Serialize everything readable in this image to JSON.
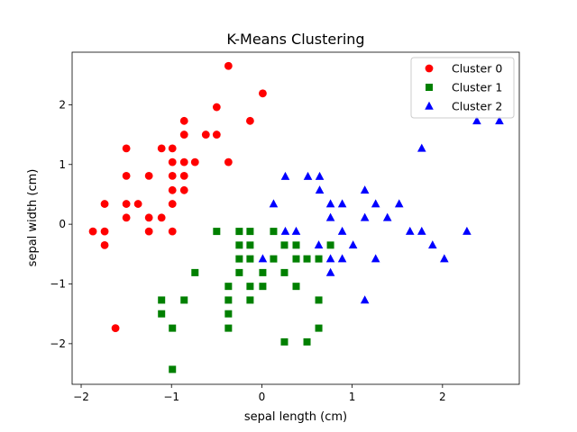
{
  "chart_data": {
    "type": "scatter",
    "title": "K-Means Clustering",
    "xlabel": "sepal length (cm)",
    "ylabel": "sepal width (cm)",
    "xlim": [
      -2.1,
      2.85
    ],
    "ylim": [
      -2.68,
      2.88
    ],
    "xticks": [
      -2,
      -1,
      0,
      1,
      2
    ],
    "yticks": [
      -2,
      -1,
      0,
      1,
      2
    ],
    "grid": false,
    "legend_position": "top-right",
    "series": [
      {
        "name": "Cluster 0",
        "marker": "circle",
        "color": "#ff0000",
        "points": [
          [
            -0.37,
            2.65
          ],
          [
            0.01,
            2.19
          ],
          [
            -0.5,
            1.96
          ],
          [
            -0.86,
            1.73
          ],
          [
            -0.13,
            1.73
          ],
          [
            -0.86,
            1.5
          ],
          [
            -0.62,
            1.5
          ],
          [
            -0.5,
            1.5
          ],
          [
            -1.5,
            1.27
          ],
          [
            -1.11,
            1.27
          ],
          [
            -0.99,
            1.27
          ],
          [
            -0.99,
            1.04
          ],
          [
            -0.86,
            1.04
          ],
          [
            -0.74,
            1.04
          ],
          [
            -0.37,
            1.04
          ],
          [
            -1.5,
            0.81
          ],
          [
            -1.25,
            0.81
          ],
          [
            -0.99,
            0.81
          ],
          [
            -0.86,
            0.81
          ],
          [
            -0.99,
            0.57
          ],
          [
            -0.86,
            0.57
          ],
          [
            -1.74,
            0.34
          ],
          [
            -1.5,
            0.34
          ],
          [
            -1.37,
            0.34
          ],
          [
            -0.99,
            0.34
          ],
          [
            -1.5,
            0.11
          ],
          [
            -1.25,
            0.11
          ],
          [
            -1.11,
            0.11
          ],
          [
            -1.87,
            -0.12
          ],
          [
            -1.74,
            -0.12
          ],
          [
            -1.25,
            -0.12
          ],
          [
            -0.99,
            -0.12
          ],
          [
            -1.74,
            -0.35
          ],
          [
            -1.62,
            -1.74
          ]
        ]
      },
      {
        "name": "Cluster 1",
        "marker": "square",
        "color": "#008000",
        "points": [
          [
            -0.5,
            -0.12
          ],
          [
            -0.25,
            -0.12
          ],
          [
            -0.13,
            -0.12
          ],
          [
            0.13,
            -0.12
          ],
          [
            -0.25,
            -0.35
          ],
          [
            -0.13,
            -0.35
          ],
          [
            0.25,
            -0.35
          ],
          [
            0.38,
            -0.35
          ],
          [
            0.76,
            -0.35
          ],
          [
            -0.25,
            -0.58
          ],
          [
            -0.13,
            -0.58
          ],
          [
            0.13,
            -0.58
          ],
          [
            0.38,
            -0.58
          ],
          [
            0.5,
            -0.58
          ],
          [
            0.63,
            -0.58
          ],
          [
            -0.74,
            -0.81
          ],
          [
            -0.25,
            -0.81
          ],
          [
            0.01,
            -0.81
          ],
          [
            0.25,
            -0.81
          ],
          [
            -0.37,
            -1.04
          ],
          [
            -0.13,
            -1.04
          ],
          [
            0.01,
            -1.04
          ],
          [
            0.38,
            -1.04
          ],
          [
            -1.11,
            -1.27
          ],
          [
            -0.86,
            -1.27
          ],
          [
            -0.37,
            -1.27
          ],
          [
            -0.13,
            -1.27
          ],
          [
            0.63,
            -1.27
          ],
          [
            -1.11,
            -1.5
          ],
          [
            -0.37,
            -1.5
          ],
          [
            -0.99,
            -1.74
          ],
          [
            -0.37,
            -1.74
          ],
          [
            0.63,
            -1.74
          ],
          [
            0.25,
            -1.97
          ],
          [
            0.5,
            -1.97
          ],
          [
            -0.99,
            -2.43
          ]
        ]
      },
      {
        "name": "Cluster 2",
        "marker": "triangle",
        "color": "#0000ff",
        "points": [
          [
            2.38,
            1.73
          ],
          [
            2.63,
            1.73
          ],
          [
            1.77,
            1.27
          ],
          [
            0.26,
            0.8
          ],
          [
            0.51,
            0.8
          ],
          [
            0.64,
            0.8
          ],
          [
            0.64,
            0.57
          ],
          [
            1.14,
            0.57
          ],
          [
            0.13,
            0.34
          ],
          [
            0.76,
            0.34
          ],
          [
            0.89,
            0.34
          ],
          [
            1.26,
            0.34
          ],
          [
            1.52,
            0.34
          ],
          [
            0.76,
            0.11
          ],
          [
            1.14,
            0.11
          ],
          [
            1.39,
            0.11
          ],
          [
            0.26,
            -0.12
          ],
          [
            0.38,
            -0.12
          ],
          [
            0.89,
            -0.12
          ],
          [
            1.64,
            -0.12
          ],
          [
            1.77,
            -0.12
          ],
          [
            2.27,
            -0.12
          ],
          [
            0.63,
            -0.35
          ],
          [
            1.01,
            -0.35
          ],
          [
            1.89,
            -0.35
          ],
          [
            0.01,
            -0.58
          ],
          [
            0.76,
            -0.58
          ],
          [
            0.89,
            -0.58
          ],
          [
            1.26,
            -0.58
          ],
          [
            2.02,
            -0.58
          ],
          [
            0.76,
            -0.81
          ],
          [
            1.14,
            -1.27
          ]
        ]
      }
    ]
  }
}
